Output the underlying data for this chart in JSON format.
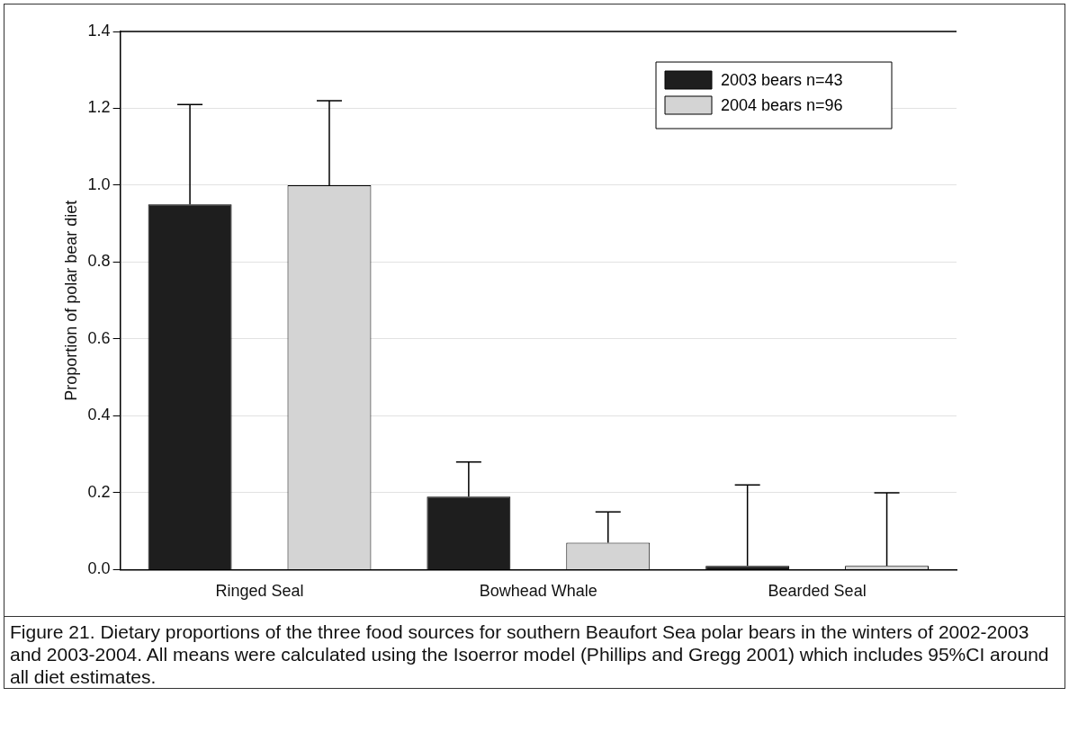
{
  "chart_data": {
    "type": "bar",
    "ylabel": "Proportion of polar bear diet",
    "categories": [
      "Ringed Seal",
      "Bowhead Whale",
      "Bearded Seal"
    ],
    "series": [
      {
        "name": "2003 bears n=43",
        "color": "#1e1e1e",
        "values": [
          0.95,
          0.19,
          0.01
        ],
        "errors": [
          [
            0.95,
            1.21
          ],
          [
            0.19,
            0.28
          ],
          [
            0.01,
            0.22
          ]
        ]
      },
      {
        "name": "2004 bears n=96",
        "color": "#d4d4d4",
        "values": [
          1.0,
          0.07,
          0.01
        ],
        "errors": [
          [
            1.0,
            1.22
          ],
          [
            0.07,
            0.15
          ],
          [
            0.01,
            0.2
          ]
        ]
      }
    ],
    "ylim": [
      0,
      1.4
    ],
    "yticks": [
      {
        "value": 0,
        "label": "0.0"
      },
      {
        "value": 0.2,
        "label": "0.2"
      },
      {
        "value": 0.4,
        "label": "0.4"
      },
      {
        "value": 0.6,
        "label": "0.6"
      },
      {
        "value": 0.8,
        "label": "0.8"
      },
      {
        "value": 1,
        "label": "1.0"
      },
      {
        "value": 1.2,
        "label": "1.2"
      },
      {
        "value": 1.4,
        "label": "1.4"
      }
    ],
    "grid": "y",
    "legend": "top right",
    "annotations": [
      "Figure 21.  Dietary proportions of the three food sources for southern Beaufort Sea polar bears in the winters of 2002-2003 and 2003-2004.  All means were calculated using the Isoerror model (Phillips and Gregg 2001) which includes 95%CI around all diet estimates."
    ]
  }
}
